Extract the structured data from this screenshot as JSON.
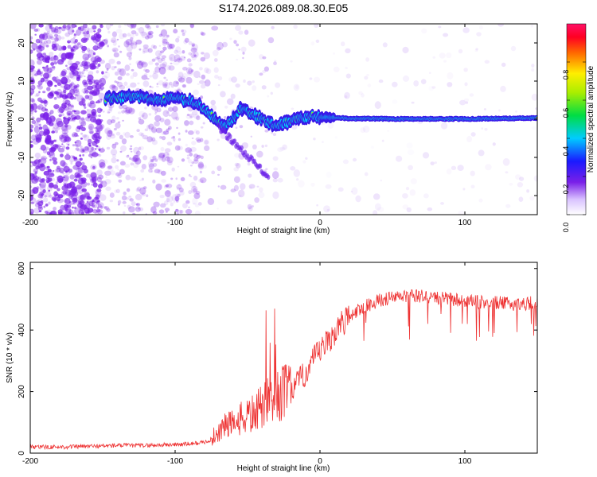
{
  "title": "S174.2026.089.08.30.E05",
  "chart_data": [
    {
      "type": "heatmap",
      "xlabel": "Height of straight line (km)",
      "ylabel": "Frequency (Hz)",
      "xlim": [
        -200,
        150
      ],
      "ylim": [
        -25,
        25
      ],
      "xticks": [
        -200,
        -100,
        0,
        100
      ],
      "xtick_labels": [
        "-200",
        "-100",
        "0",
        "100"
      ],
      "yticks": [
        -20,
        -10,
        0,
        10,
        20
      ],
      "ytick_labels": [
        "-20",
        "-10",
        "0",
        "10",
        "20"
      ],
      "ridge_track": {
        "x": [
          -148,
          -140,
          -130,
          -120,
          -110,
          -100,
          -90,
          -80,
          -75,
          -70,
          -65,
          -60,
          -55,
          -50,
          -45,
          -40,
          -35,
          -30,
          -25,
          -20,
          -15,
          -10,
          -5,
          0,
          5,
          10,
          20,
          50,
          100,
          150
        ],
        "frequency": [
          5.5,
          5.5,
          6,
          5.5,
          5,
          5.5,
          5,
          3,
          1,
          -1,
          -2,
          0,
          3,
          2,
          1,
          0,
          -1,
          -2,
          -1,
          -0.5,
          0,
          0.5,
          1,
          0.5,
          0.5,
          0.5,
          0.2,
          0.1,
          0.1,
          0.3
        ]
      },
      "colorbar": {
        "label": "Normalized spectral amplitude",
        "range": [
          0,
          1
        ],
        "ticks": [
          0.0,
          0.2,
          0.4,
          0.6,
          0.8
        ],
        "tick_labels": [
          "0.0",
          "0.2",
          "0.4",
          "0.6",
          "0.8"
        ]
      }
    },
    {
      "type": "line",
      "xlabel": "Height of straight line (km)",
      "ylabel": "SNR (10 * v/v)",
      "xlim": [
        -200,
        150
      ],
      "ylim": [
        0,
        620
      ],
      "xticks": [
        -200,
        -100,
        0,
        100
      ],
      "xtick_labels": [
        "-200",
        "-100",
        "0",
        "100"
      ],
      "yticks": [
        0,
        200,
        400,
        600
      ],
      "ytick_labels": [
        "0",
        "200",
        "400",
        "600"
      ],
      "series": [
        {
          "name": "SNR",
          "color": "#ee3333",
          "x": [
            -200,
            -180,
            -160,
            -140,
            -120,
            -100,
            -90,
            -80,
            -75,
            -70,
            -65,
            -60,
            -55,
            -50,
            -45,
            -40,
            -35,
            -30,
            -25,
            -20,
            -15,
            -10,
            -5,
            0,
            5,
            10,
            15,
            20,
            30,
            40,
            50,
            60,
            70,
            80,
            90,
            100,
            110,
            120,
            130,
            140,
            150
          ],
          "values": [
            20,
            20,
            22,
            25,
            25,
            28,
            30,
            35,
            45,
            70,
            90,
            100,
            110,
            120,
            130,
            150,
            170,
            180,
            200,
            210,
            230,
            260,
            300,
            330,
            360,
            390,
            420,
            445,
            475,
            495,
            505,
            510,
            510,
            505,
            500,
            495,
            490,
            490,
            485,
            485,
            490
          ]
        }
      ]
    }
  ],
  "colors": {
    "line": "#ee3333",
    "ridge_core": "#e02020",
    "speckle": "#7a20e8"
  }
}
